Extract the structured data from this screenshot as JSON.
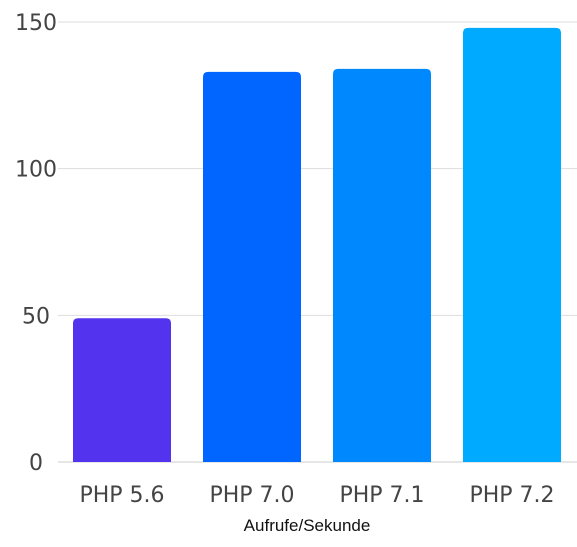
{
  "chart_data": {
    "type": "bar",
    "categories": [
      "PHP 5.6",
      "PHP 7.0",
      "PHP 7.1",
      "PHP 7.2"
    ],
    "values": [
      49,
      133,
      134,
      148
    ],
    "bar_colors": [
      "#5333ed",
      "#0066ff",
      "#0088ff",
      "#00aaff"
    ],
    "xlabel": "Aufrufe/Sekunde",
    "ylabel": "",
    "ylim": [
      0,
      150
    ],
    "yticks": [
      "0",
      "50",
      "100",
      "150"
    ],
    "grid": true
  }
}
